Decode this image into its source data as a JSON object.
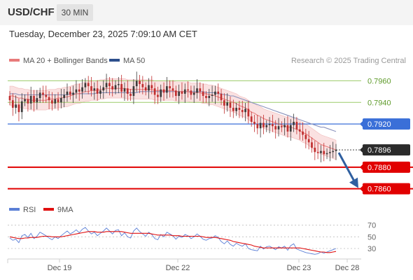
{
  "header": {
    "pair": "USD/CHF",
    "timeframe": "30 MIN",
    "timestamp": "Tuesday, December 23, 2025 7:09:10 AM CET"
  },
  "legend": {
    "ma20_label": "MA 20 + Bollinger Bands",
    "ma50_label": "MA 50",
    "credit": "Research © 2025 Trading Central",
    "rsi_label": "RSI",
    "rsi_ma_label": "9MA"
  },
  "colors": {
    "candle_up": "#3a3a3a",
    "candle_down": "#c02e2e",
    "ma20": "#e87a7a",
    "bollinger_fill": "#f9dcdc",
    "ma50": "#8b93bd",
    "pivot_line": "#3a6fd8",
    "support_line": "#e10000",
    "resistance_line": "#9ccc6a",
    "resistance_text": "#5e9a2a",
    "arrow": "#2f5fa0",
    "current_price_bg": "#2b2b2b",
    "rsi": "#5b7fd6",
    "rsi_ma": "#e01010"
  },
  "chart_data": [
    {
      "type": "candlestick",
      "instrument": "USD/CHF",
      "timeframe": "30 MIN",
      "x_ticks": [
        "Dec 19",
        "Dec 22",
        "Dec 23",
        "Dec 28"
      ],
      "ylim": [
        0.7852,
        0.797
      ],
      "levels": [
        {
          "value": 0.796,
          "label": "0.7960",
          "kind": "resistance"
        },
        {
          "value": 0.794,
          "label": "0.7940",
          "kind": "resistance"
        },
        {
          "value": 0.792,
          "label": "0.7920",
          "kind": "pivot"
        },
        {
          "value": 0.7896,
          "label": "0.7896",
          "kind": "current"
        },
        {
          "value": 0.788,
          "label": "0.7880",
          "kind": "support"
        },
        {
          "value": 0.786,
          "label": "0.7860",
          "kind": "support"
        }
      ],
      "closes": [
        0.7942,
        0.7935,
        0.7938,
        0.7931,
        0.7941,
        0.7943,
        0.7939,
        0.7946,
        0.794,
        0.7944,
        0.7949,
        0.7947,
        0.7945,
        0.7942,
        0.7939,
        0.7943,
        0.794,
        0.7944,
        0.7947,
        0.795,
        0.7947,
        0.7949,
        0.7952,
        0.795,
        0.7954,
        0.7958,
        0.7955,
        0.7951,
        0.7953,
        0.7948,
        0.7951,
        0.7954,
        0.7958,
        0.7955,
        0.7952,
        0.7956,
        0.7957,
        0.795,
        0.7953,
        0.7948,
        0.7946,
        0.7955,
        0.796,
        0.7957,
        0.7954,
        0.7951,
        0.7956,
        0.7953,
        0.7947,
        0.7945,
        0.7952,
        0.7949,
        0.7955,
        0.7953,
        0.7951,
        0.7946,
        0.795,
        0.7948,
        0.7952,
        0.7951,
        0.7947,
        0.7949,
        0.7953,
        0.795,
        0.7946,
        0.7944,
        0.7946,
        0.7947,
        0.795,
        0.7948,
        0.7942,
        0.7937,
        0.794,
        0.7935,
        0.7932,
        0.7935,
        0.7933,
        0.7931,
        0.7934,
        0.7927,
        0.7922,
        0.792,
        0.7916,
        0.7921,
        0.7917,
        0.7919,
        0.792,
        0.7918,
        0.7915,
        0.7918,
        0.7917,
        0.7919,
        0.7913,
        0.7919,
        0.7922,
        0.7915,
        0.7913,
        0.791,
        0.7906,
        0.7903,
        0.7898,
        0.7894,
        0.7893,
        0.7895,
        0.7892,
        0.7893,
        0.7894,
        0.7895,
        0.7896
      ],
      "ma20": [
        0.7946,
        0.7946,
        0.7945,
        0.7944,
        0.7944,
        0.7943,
        0.7943,
        0.7942,
        0.7942,
        0.7942,
        0.7942,
        0.7942,
        0.7942,
        0.7943,
        0.7943,
        0.7943,
        0.7944,
        0.7944,
        0.7945,
        0.7945,
        0.7946,
        0.7947,
        0.7948,
        0.7948,
        0.7949,
        0.795,
        0.795,
        0.7951,
        0.7951,
        0.7951,
        0.7952,
        0.7952,
        0.7953,
        0.7953,
        0.7953,
        0.7953,
        0.7953,
        0.7953,
        0.7953,
        0.7952,
        0.7952,
        0.7952,
        0.7952,
        0.7952,
        0.7952,
        0.7952,
        0.7952,
        0.7952,
        0.7951,
        0.7951,
        0.7951,
        0.7951,
        0.7951,
        0.7951,
        0.7951,
        0.795,
        0.795,
        0.795,
        0.795,
        0.795,
        0.7949,
        0.7949,
        0.7949,
        0.7949,
        0.7948,
        0.7948,
        0.7947,
        0.7947,
        0.7946,
        0.7945,
        0.7944,
        0.7943,
        0.7942,
        0.7941,
        0.794,
        0.7939,
        0.7937,
        0.7936,
        0.7935,
        0.7933,
        0.7931,
        0.793,
        0.7928,
        0.7927,
        0.7925,
        0.7924,
        0.7923,
        0.7922,
        0.7921,
        0.792,
        0.7919,
        0.7918,
        0.7917,
        0.7917,
        0.7916,
        0.7915,
        0.7914,
        0.7912,
        0.7911,
        0.7909,
        0.7907,
        0.7905,
        0.7903,
        0.7901,
        0.79,
        0.7899,
        0.7898,
        0.7897,
        0.7896
      ],
      "ma50": [
        0.7948,
        0.7948,
        0.7948,
        0.7947,
        0.7947,
        0.7947,
        0.7947,
        0.7947,
        0.7947,
        0.7947,
        0.7947,
        0.7947,
        0.7947,
        0.7947,
        0.7947,
        0.7947,
        0.7947,
        0.7947,
        0.7947,
        0.7947,
        0.7948,
        0.7948,
        0.7948,
        0.7948,
        0.7948,
        0.7948,
        0.7948,
        0.7948,
        0.7948,
        0.7949,
        0.7949,
        0.7949,
        0.7949,
        0.7949,
        0.7949,
        0.7949,
        0.7949,
        0.7949,
        0.7949,
        0.7949,
        0.7949,
        0.7949,
        0.7949,
        0.795,
        0.795,
        0.795,
        0.795,
        0.795,
        0.795,
        0.795,
        0.795,
        0.795,
        0.795,
        0.795,
        0.795,
        0.795,
        0.795,
        0.795,
        0.795,
        0.795,
        0.795,
        0.795,
        0.795,
        0.795,
        0.795,
        0.7949,
        0.7949,
        0.7949,
        0.7949,
        0.7948,
        0.7948,
        0.7947,
        0.7947,
        0.7946,
        0.7946,
        0.7945,
        0.7944,
        0.7943,
        0.7942,
        0.7941,
        0.794,
        0.7939,
        0.7938,
        0.7937,
        0.7936,
        0.7935,
        0.7934,
        0.7933,
        0.7932,
        0.7931,
        0.793,
        0.7929,
        0.7928,
        0.7927,
        0.7926,
        0.7925,
        0.7924,
        0.7923,
        0.7922,
        0.7921,
        0.792,
        0.7919,
        0.7918,
        0.7917,
        0.7917,
        0.7916,
        0.7915,
        0.7914,
        0.7913
      ],
      "bb_width": 0.0009,
      "forecast_target": 0.786
    },
    {
      "type": "line",
      "name": "RSI",
      "ylim": [
        18,
        78
      ],
      "y_ticks": [
        70,
        50,
        30
      ],
      "series": [
        {
          "name": "RSI",
          "values": [
            48,
            44,
            46,
            40,
            52,
            54,
            49,
            56,
            47,
            51,
            58,
            55,
            52,
            48,
            45,
            50,
            47,
            52,
            56,
            60,
            55,
            58,
            62,
            57,
            63,
            66,
            60,
            55,
            58,
            52,
            56,
            60,
            65,
            60,
            55,
            61,
            62,
            52,
            57,
            50,
            48,
            60,
            65,
            59,
            55,
            51,
            58,
            54,
            47,
            45,
            54,
            50,
            58,
            55,
            52,
            46,
            51,
            49,
            54,
            52,
            47,
            50,
            55,
            51,
            46,
            44,
            47,
            48,
            52,
            49,
            42,
            38,
            43,
            37,
            34,
            39,
            36,
            34,
            38,
            30,
            28,
            27,
            26,
            34,
            29,
            33,
            34,
            31,
            28,
            33,
            31,
            34,
            27,
            35,
            38,
            29,
            27,
            25,
            23,
            22,
            21,
            20,
            21,
            24,
            22,
            24,
            26,
            28,
            30
          ]
        },
        {
          "name": "9MA",
          "values": [
            50,
            49,
            48,
            47,
            47,
            48,
            48,
            49,
            49,
            49,
            50,
            51,
            51,
            51,
            50,
            50,
            50,
            50,
            51,
            52,
            53,
            54,
            55,
            56,
            57,
            58,
            59,
            59,
            59,
            58,
            58,
            58,
            59,
            59,
            59,
            59,
            59,
            59,
            58,
            57,
            56,
            56,
            56,
            56,
            56,
            56,
            56,
            55,
            54,
            53,
            53,
            53,
            53,
            53,
            52,
            52,
            52,
            51,
            51,
            51,
            51,
            51,
            51,
            51,
            50,
            49,
            49,
            49,
            49,
            48,
            47,
            46,
            45,
            44,
            42,
            41,
            40,
            39,
            38,
            37,
            36,
            34,
            33,
            32,
            31,
            31,
            31,
            31,
            31,
            31,
            31,
            31,
            31,
            31,
            31,
            31,
            31,
            30,
            29,
            28,
            27,
            26,
            25,
            24,
            24,
            23,
            23,
            24,
            25
          ]
        }
      ]
    }
  ]
}
